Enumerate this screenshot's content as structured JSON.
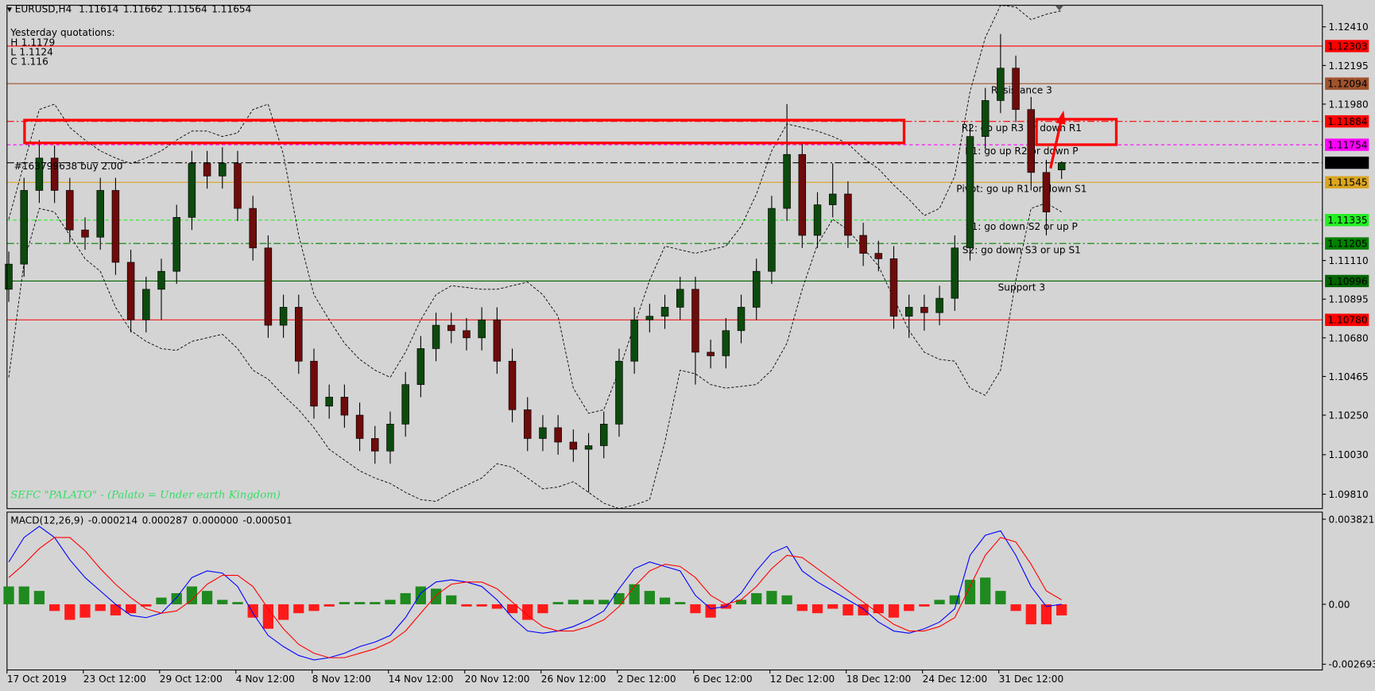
{
  "chart_data": [
    {
      "type": "candlestick",
      "title": "EURUSD,H4",
      "header_values": [
        1.11614,
        1.11662,
        1.11564,
        1.11654
      ],
      "yesterday": {
        "title": "Yesterday quotations:",
        "items": [
          {
            "label": "H",
            "value": 1.1179
          },
          {
            "label": "L",
            "value": 1.1124
          },
          {
            "label": "C",
            "value": 1.116
          }
        ]
      },
      "order": "#163799638 buy 2.00",
      "watermark": "SEFC \"PALATO\" - (Palato = Under earth Kingdom)",
      "categories": [
        "17 Oct 2019",
        null,
        null,
        null,
        null,
        "23 Oct 12:00",
        null,
        null,
        null,
        null,
        "29 Oct 12:00",
        null,
        null,
        null,
        null,
        "4 Nov 12:00",
        null,
        null,
        null,
        null,
        "8 Nov 12:00",
        null,
        null,
        null,
        null,
        "14 Nov 12:00",
        null,
        null,
        null,
        null,
        "20 Nov 12:00",
        null,
        null,
        null,
        null,
        "26 Nov 12:00",
        null,
        null,
        null,
        null,
        "2 Dec 12:00",
        null,
        null,
        null,
        null,
        "6 Dec 12:00",
        null,
        null,
        null,
        null,
        "12 Dec 12:00",
        null,
        null,
        null,
        null,
        "18 Dec 12:00",
        null,
        null,
        null,
        null,
        "24 Dec 12:00",
        null,
        null,
        null,
        null,
        "31 Dec 12:00",
        null,
        null,
        null,
        null
      ],
      "open": [
        1.1095,
        1.1109,
        1.115,
        1.1168,
        1.115,
        1.1128,
        1.1124,
        1.115,
        1.111,
        1.1078,
        1.1095,
        1.1105,
        1.1135,
        1.1165,
        1.1158,
        1.1165,
        1.114,
        1.1118,
        1.1075,
        1.1085,
        1.1055,
        1.103,
        1.1035,
        1.1025,
        1.1012,
        1.1005,
        1.102,
        1.1042,
        1.1062,
        1.1075,
        1.1072,
        1.1068,
        1.1078,
        1.1055,
        1.1028,
        1.1012,
        1.1018,
        1.101,
        1.1006,
        1.1008,
        1.102,
        1.1055,
        1.1078,
        1.108,
        1.1085,
        1.1095,
        1.106,
        1.1058,
        1.1072,
        1.1085,
        1.1105,
        1.114,
        1.117,
        1.1125,
        1.1142,
        1.1148,
        1.1125,
        1.1115,
        1.1112,
        1.108,
        1.1085,
        1.1082,
        1.109,
        1.1118,
        1.118,
        1.12,
        1.1218,
        1.1195,
        1.116,
        1.11614
      ],
      "high": [
        1.1116,
        1.1157,
        1.1178,
        1.1175,
        1.1157,
        1.1135,
        1.1157,
        1.1157,
        1.1117,
        1.1102,
        1.1112,
        1.1142,
        1.1172,
        1.1172,
        1.1174,
        1.1172,
        1.1147,
        1.1125,
        1.1092,
        1.1092,
        1.1062,
        1.1042,
        1.1042,
        1.1032,
        1.1019,
        1.1027,
        1.1049,
        1.1069,
        1.1082,
        1.1082,
        1.1079,
        1.1085,
        1.1085,
        1.1062,
        1.1035,
        1.1025,
        1.1025,
        1.1017,
        1.1015,
        1.1027,
        1.1062,
        1.1085,
        1.1087,
        1.1092,
        1.1102,
        1.1102,
        1.1067,
        1.1079,
        1.1092,
        1.1112,
        1.1147,
        1.1198,
        1.1177,
        1.1149,
        1.1165,
        1.1155,
        1.1132,
        1.1122,
        1.1119,
        1.1092,
        1.1092,
        1.1097,
        1.1125,
        1.1187,
        1.1207,
        1.1237,
        1.1225,
        1.1202,
        1.1167,
        1.11662
      ],
      "low": [
        1.1088,
        1.1102,
        1.1143,
        1.1143,
        1.1121,
        1.1117,
        1.1117,
        1.1103,
        1.1071,
        1.1071,
        1.1078,
        1.1098,
        1.1128,
        1.1151,
        1.1151,
        1.1133,
        1.1111,
        1.1068,
        1.1068,
        1.1048,
        1.1023,
        1.1023,
        1.1018,
        1.1005,
        1.0998,
        1.0998,
        1.1013,
        1.1035,
        1.1055,
        1.1065,
        1.1061,
        1.1061,
        1.1048,
        1.1021,
        1.1005,
        1.1005,
        1.1003,
        1.0999,
        1.0982,
        1.1001,
        1.1013,
        1.1048,
        1.1071,
        1.1073,
        1.1078,
        1.1042,
        1.1051,
        1.1051,
        1.1065,
        1.1078,
        1.1098,
        1.1133,
        1.1118,
        1.1118,
        1.1135,
        1.1118,
        1.1108,
        1.1105,
        1.1073,
        1.1068,
        1.1072,
        1.1075,
        1.1083,
        1.1111,
        1.1173,
        1.1193,
        1.1188,
        1.115,
        1.1125,
        1.11564
      ],
      "close": [
        1.1109,
        1.115,
        1.1168,
        1.115,
        1.1128,
        1.1124,
        1.115,
        1.111,
        1.1078,
        1.1095,
        1.1105,
        1.1135,
        1.1165,
        1.1158,
        1.1165,
        1.114,
        1.1118,
        1.1075,
        1.1085,
        1.1055,
        1.103,
        1.1035,
        1.1025,
        1.1012,
        1.1005,
        1.102,
        1.1042,
        1.1062,
        1.1075,
        1.1072,
        1.1068,
        1.1078,
        1.1055,
        1.1028,
        1.1012,
        1.1018,
        1.101,
        1.1006,
        1.1008,
        1.102,
        1.1055,
        1.1078,
        1.108,
        1.1085,
        1.1095,
        1.106,
        1.1058,
        1.1072,
        1.1085,
        1.1105,
        1.114,
        1.117,
        1.1125,
        1.1142,
        1.1148,
        1.1125,
        1.1115,
        1.1112,
        1.108,
        1.1085,
        1.1082,
        1.109,
        1.1118,
        1.118,
        1.12,
        1.1218,
        1.1195,
        1.116,
        1.1138,
        1.11654
      ],
      "bands": {
        "color": "#000000",
        "upper": [
          1.1134,
          1.1165,
          1.1195,
          1.1198,
          1.1185,
          1.1178,
          1.1172,
          1.1168,
          1.1165,
          1.1168,
          1.1172,
          1.1178,
          1.1183,
          1.1183,
          1.118,
          1.1182,
          1.1195,
          1.1198,
          1.117,
          1.1125,
          1.1092,
          1.1078,
          1.1065,
          1.1056,
          1.105,
          1.1046,
          1.106,
          1.1078,
          1.1092,
          1.1097,
          1.1096,
          1.1095,
          1.1095,
          1.1097,
          1.1099,
          1.1092,
          1.108,
          1.104,
          1.1026,
          1.1028,
          1.105,
          1.1075,
          1.11,
          1.1119,
          1.1117,
          1.1115,
          1.1117,
          1.1119,
          1.113,
          1.1148,
          1.1172,
          1.1187,
          1.1185,
          1.1183,
          1.118,
          1.1176,
          1.1168,
          1.1162,
          1.1153,
          1.1145,
          1.1136,
          1.114,
          1.1158,
          1.1205,
          1.1235,
          1.1253,
          1.1252,
          1.1245,
          1.1248,
          1.125
        ],
        "lower": [
          1.1046,
          1.111,
          1.114,
          1.1138,
          1.1125,
          1.1112,
          1.1105,
          1.1085,
          1.1072,
          1.1066,
          1.1062,
          1.1061,
          1.1066,
          1.1068,
          1.107,
          1.1062,
          1.105,
          1.1045,
          1.1036,
          1.1028,
          1.1018,
          1.1006,
          1.1,
          1.0994,
          1.099,
          1.0987,
          1.0982,
          1.0978,
          1.0977,
          1.0982,
          1.0986,
          1.099,
          1.0998,
          1.0996,
          1.099,
          1.0984,
          1.0985,
          1.0988,
          1.0982,
          1.0976,
          1.0973,
          1.0975,
          1.0978,
          1.101,
          1.105,
          1.1048,
          1.1042,
          1.104,
          1.1041,
          1.1042,
          1.105,
          1.1065,
          1.1095,
          1.112,
          1.1134,
          1.1128,
          1.1118,
          1.1108,
          1.109,
          1.1072,
          1.106,
          1.1056,
          1.1055,
          1.104,
          1.1036,
          1.105,
          1.11,
          1.114,
          1.1143,
          1.1138
        ]
      },
      "up_color": "#0d4a0d",
      "down_color": "#6e0b0b",
      "ylim": [
        1.0973,
        1.1253
      ],
      "yticks": [
        {
          "value": 1.1241,
          "label": "1.12410"
        },
        1.12195,
        {
          "value": 1.1198,
          "label": "1.11980"
        },
        {
          "value": 1.1111,
          "label": "1.11110"
        },
        1.10895,
        {
          "value": 1.1068,
          "label": "1.10680"
        },
        1.10465,
        {
          "value": 1.1025,
          "label": "1.10250"
        },
        {
          "value": 1.1003,
          "label": "1.10030"
        },
        {
          "value": 1.0981,
          "label": "1.09810"
        }
      ],
      "levels": [
        {
          "price": 1.12303,
          "color": "#ff0000",
          "dash": "solid"
        },
        {
          "price": 1.12094,
          "color": "#a0522d",
          "dash": "solid",
          "text": "Resistance 3"
        },
        {
          "price": 1.11884,
          "color": "#ff0000",
          "dash": "dashdot",
          "text": "R2: go up R3 or down R1"
        },
        {
          "price": 1.11754,
          "color": "#ff00ff",
          "dash": "dashed",
          "text": "R1: go up R2 or down P"
        },
        {
          "price": 1.11654,
          "color": "#000000",
          "dash": "dashdot"
        },
        {
          "price": 1.11545,
          "color": "#daa520",
          "dash": "solid",
          "text": "Pivot: go up R1 or down S1"
        },
        {
          "price": 1.11335,
          "color": "#22ee22",
          "dash": "dashed",
          "text": "S1: go down S2 or up P"
        },
        {
          "price": 1.11205,
          "color": "#008000",
          "dash": "dashdot",
          "text": "S2: go down S3 or up S1"
        },
        {
          "price": 1.10996,
          "color": "#006400",
          "dash": "solid",
          "text": "Support 3"
        },
        {
          "price": {
            "value": 1.1078,
            "label": "1.10780"
          },
          "color": "#ff0000",
          "dash": "solid"
        }
      ]
    },
    {
      "type": "macd",
      "title": "MACD(12,26,9)",
      "header_values": [
        -0.000214,
        0.000287,
        {
          "value": 0,
          "label": "0.000000"
        },
        -0.000501
      ],
      "histogram": [
        0.0008,
        0.0008,
        0.0006,
        -0.0003,
        -0.0007,
        -0.0006,
        -0.0003,
        -0.0005,
        -0.0004,
        -0.0001,
        0.0003,
        0.0005,
        0.0008,
        0.0006,
        0.0002,
        0.0001,
        -0.0006,
        -0.0011,
        -0.0007,
        -0.0004,
        -0.0003,
        -0.0001,
        0.0001,
        0.0001,
        0.0001,
        0.0002,
        0.0005,
        0.0008,
        0.0007,
        0.0004,
        -0.0001,
        -0.0001,
        -0.0002,
        -0.0004,
        -0.0007,
        -0.0004,
        0.0001,
        0.0002,
        0.0002,
        0.0002,
        0.0005,
        0.0009,
        0.0006,
        0.0003,
        0.0001,
        -0.0004,
        -0.0006,
        -0.0002,
        0.0002,
        0.0005,
        0.0006,
        0.0004,
        -0.0003,
        -0.0004,
        -0.0002,
        -0.0005,
        -0.0005,
        -0.0004,
        -0.0006,
        -0.0003,
        -0.0001,
        0.0002,
        0.0004,
        0.0011,
        0.0012,
        0.0006,
        -0.0003,
        -0.0009,
        -0.0009,
        -0.0005
      ],
      "hist_up_color": "#1f8a1f",
      "hist_down_color": "#ff1a1a",
      "series": [
        {
          "color": "#0000ff",
          "values": [
            0.0019,
            0.003,
            0.0035,
            0.003,
            0.002,
            0.0012,
            0.0006,
            0.0,
            -0.0005,
            -0.0006,
            -0.0004,
            0.0003,
            0.0012,
            0.0015,
            0.0014,
            0.0008,
            -0.0004,
            -0.0014,
            -0.0019,
            -0.0023,
            -0.0025,
            -0.0024,
            -0.0022,
            -0.0019,
            -0.0017,
            -0.0014,
            -0.0006,
            0.0005,
            0.001,
            0.0011,
            0.001,
            0.0008,
            0.0002,
            -0.0006,
            -0.0012,
            -0.0013,
            -0.0012,
            -0.001,
            -0.0007,
            -0.0003,
            0.0007,
            0.0016,
            0.0019,
            0.0017,
            0.0015,
            0.0004,
            -0.0002,
            -0.0001,
            0.0005,
            0.0015,
            0.0023,
            0.0026,
            0.0015,
            0.001,
            0.0006,
            0.0002,
            -0.0002,
            -0.0008,
            -0.0012,
            -0.0013,
            -0.0011,
            -0.0008,
            -0.0002,
            0.0022,
            0.0031,
            0.0033,
            0.0022,
            0.0008,
            -0.0001,
            0.0
          ]
        },
        {
          "color": "#ff0000",
          "values": [
            0.0012,
            0.0018,
            0.0025,
            0.003,
            0.003,
            0.0024,
            0.0016,
            0.0009,
            0.0003,
            -0.0002,
            -0.0004,
            -0.0003,
            0.0002,
            0.0009,
            0.0013,
            0.0013,
            0.0008,
            -0.0002,
            -0.0011,
            -0.0018,
            -0.0022,
            -0.0024,
            -0.0024,
            -0.0022,
            -0.002,
            -0.0017,
            -0.0012,
            -0.0004,
            0.0004,
            0.0009,
            0.001,
            0.001,
            0.0007,
            0.0001,
            -0.0005,
            -0.001,
            -0.0012,
            -0.0012,
            -0.001,
            -0.0007,
            -0.0001,
            0.0008,
            0.0015,
            0.0018,
            0.0017,
            0.0012,
            0.0004,
            0.0,
            0.0002,
            0.0008,
            0.0016,
            0.0022,
            0.0021,
            0.0016,
            0.0011,
            0.0006,
            0.0001,
            -0.0004,
            -0.0009,
            -0.0012,
            -0.0012,
            -0.001,
            -0.0006,
            0.0008,
            0.0022,
            0.003,
            0.0028,
            0.0018,
            0.0006,
            0.0002
          ]
        }
      ],
      "ylim": [
        -0.00295,
        0.00414
      ],
      "yticks": [
        0.003821,
        {
          "value": 0,
          "label": "0.00"
        },
        -0.002693
      ]
    }
  ]
}
